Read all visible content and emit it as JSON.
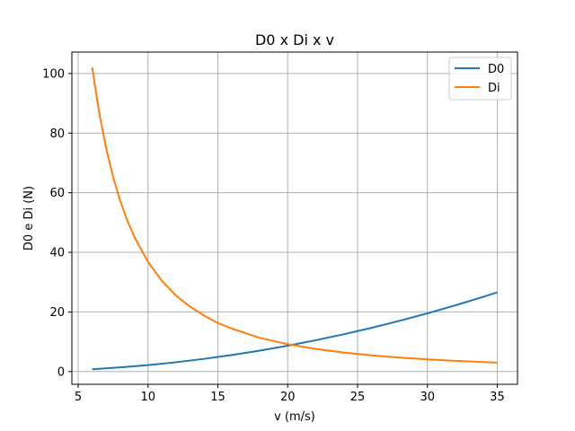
{
  "chart_data": {
    "type": "line",
    "title": "D0 x Di x v",
    "xlabel": "v (m/s)",
    "ylabel": "D0 e Di (N)",
    "xlim": [
      4.55,
      36.45
    ],
    "ylim": [
      -4.28,
      107.2
    ],
    "xticks": [
      5,
      10,
      15,
      20,
      25,
      30,
      35
    ],
    "yticks": [
      0,
      20,
      40,
      60,
      80,
      100
    ],
    "grid": true,
    "legend_position": "top-right",
    "series": [
      {
        "name": "D0",
        "color": "#1f77b4",
        "x": [
          6,
          8,
          10,
          12,
          14,
          16,
          18,
          20,
          22,
          24,
          26,
          28,
          30,
          32,
          34,
          35
        ],
        "y": [
          0.78,
          1.39,
          2.17,
          3.12,
          4.25,
          5.55,
          7.03,
          8.68,
          10.5,
          12.5,
          14.67,
          17.01,
          19.53,
          22.22,
          25.09,
          26.58
        ]
      },
      {
        "name": "Di",
        "color": "#ff7f0e",
        "x": [
          6,
          6.5,
          7,
          7.5,
          8,
          8.5,
          9,
          10,
          11,
          12,
          13,
          14,
          15,
          16,
          18,
          20,
          22,
          24,
          26,
          28,
          30,
          32,
          35
        ],
        "y": [
          102.1,
          87.0,
          75.0,
          65.3,
          57.4,
          50.9,
          45.4,
          36.8,
          30.4,
          25.5,
          21.8,
          18.8,
          16.3,
          14.4,
          11.3,
          9.19,
          7.59,
          6.38,
          5.44,
          4.69,
          4.08,
          3.59,
          3.0
        ]
      }
    ]
  }
}
